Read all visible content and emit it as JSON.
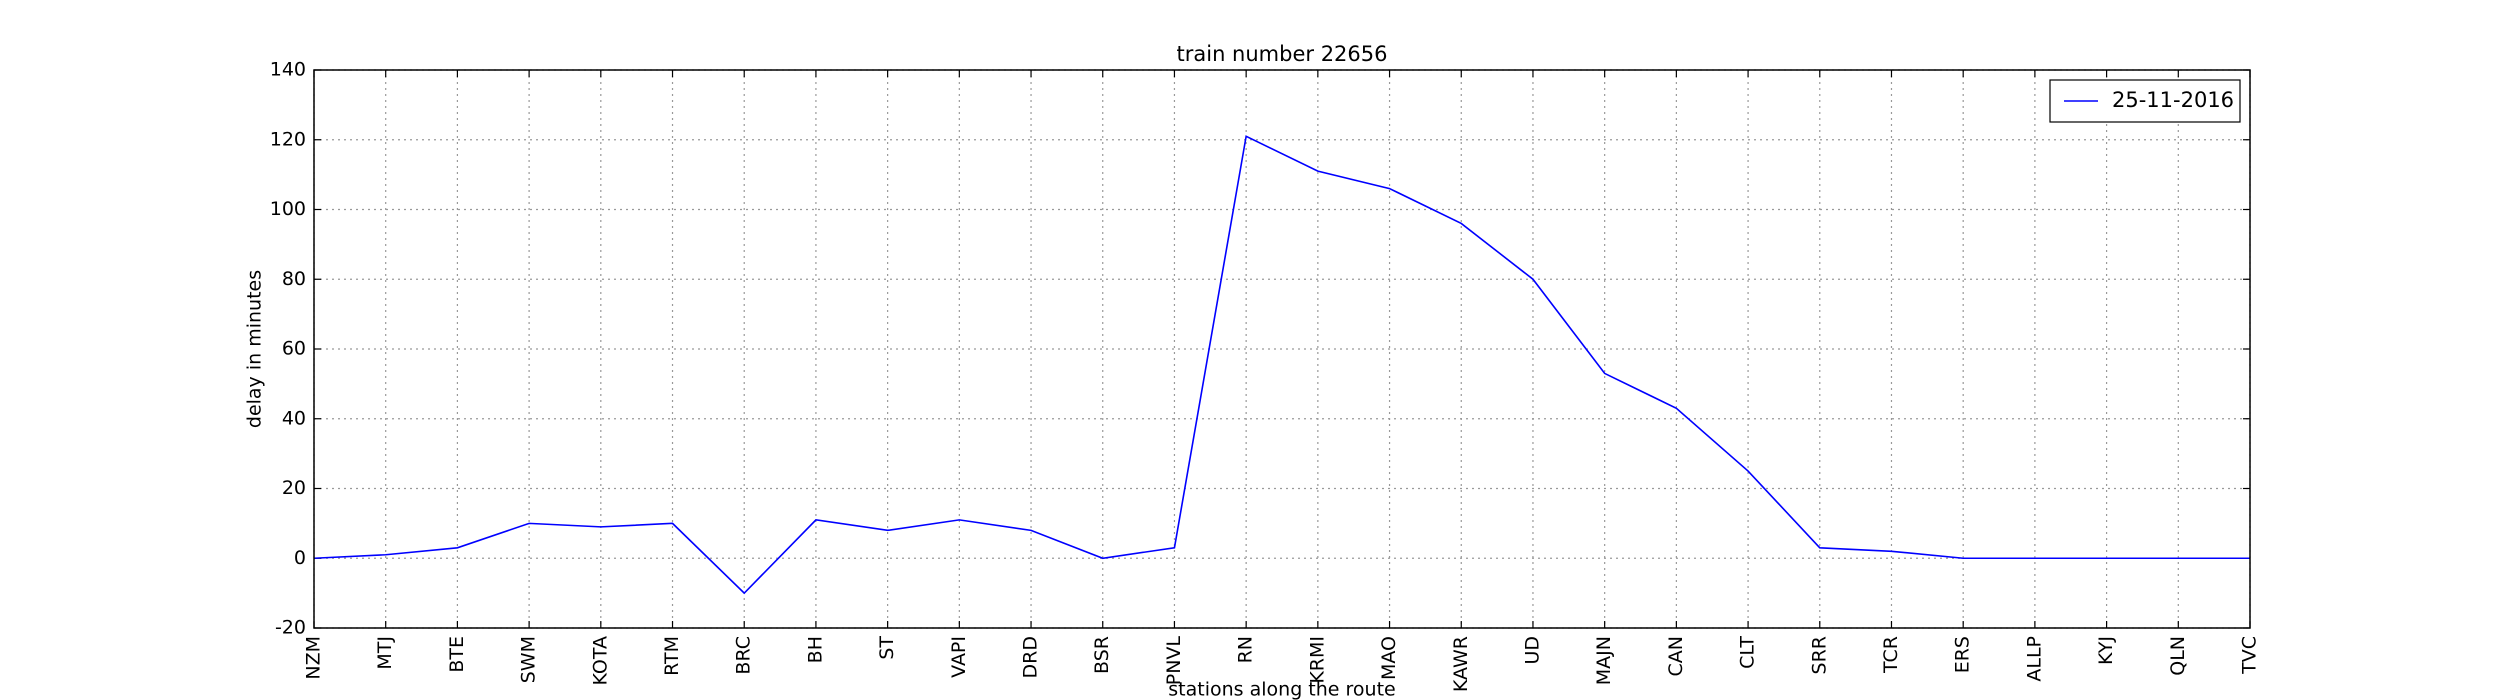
{
  "chart_data": {
    "type": "line",
    "title": "train number 22656",
    "x_label": "stations along the route",
    "y_label": "delay in minutes",
    "categories": [
      "NZM",
      "MTJ",
      "BTE",
      "SWM",
      "KOTA",
      "RTM",
      "BRC",
      "BH",
      "ST",
      "VAPI",
      "DRD",
      "BSR",
      "PNVL",
      "RN",
      "KRMI",
      "MAO",
      "KAWR",
      "UD",
      "MAJN",
      "CAN",
      "CLT",
      "SRR",
      "TCR",
      "ERS",
      "ALLP",
      "KYJ",
      "QLN",
      "TVC"
    ],
    "series": [
      {
        "name": "25-11-2016",
        "color": "#0000ff",
        "values": [
          0,
          1,
          3,
          10,
          9,
          10,
          -10,
          11,
          8,
          11,
          8,
          0,
          3,
          121,
          111,
          106,
          96,
          80,
          53,
          43,
          25,
          3,
          2,
          0,
          0,
          0,
          0,
          0
        ]
      }
    ],
    "ylim": [
      -20,
      140
    ],
    "yticks": [
      -20,
      0,
      20,
      40,
      60,
      80,
      100,
      120,
      140
    ],
    "grid": true,
    "legend": "upper right"
  }
}
